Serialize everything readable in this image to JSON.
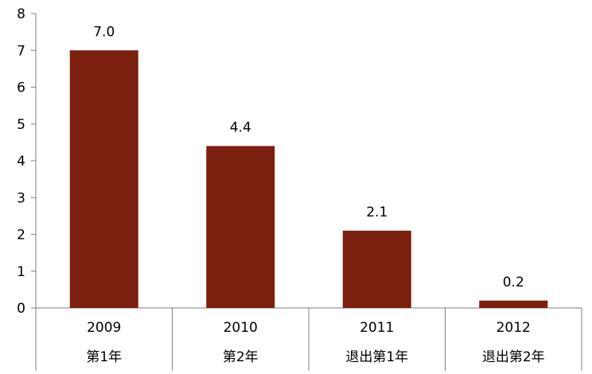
{
  "chart_data": {
    "type": "bar",
    "categories": [
      "2009",
      "2010",
      "2011",
      "2012"
    ],
    "category_sublabels": [
      "第1年",
      "第2年",
      "退出第1年",
      "退出第2年"
    ],
    "values": [
      7.0,
      4.4,
      2.1,
      0.2
    ],
    "data_labels": [
      "7.0",
      "4.4",
      "2.1",
      "0.2"
    ],
    "ylim": [
      0,
      8
    ],
    "yticks": [
      "0",
      "1",
      "2",
      "3",
      "4",
      "5",
      "6",
      "7",
      "8"
    ],
    "bar_color": "#7B1F0E",
    "grid": false,
    "legend": "none"
  }
}
